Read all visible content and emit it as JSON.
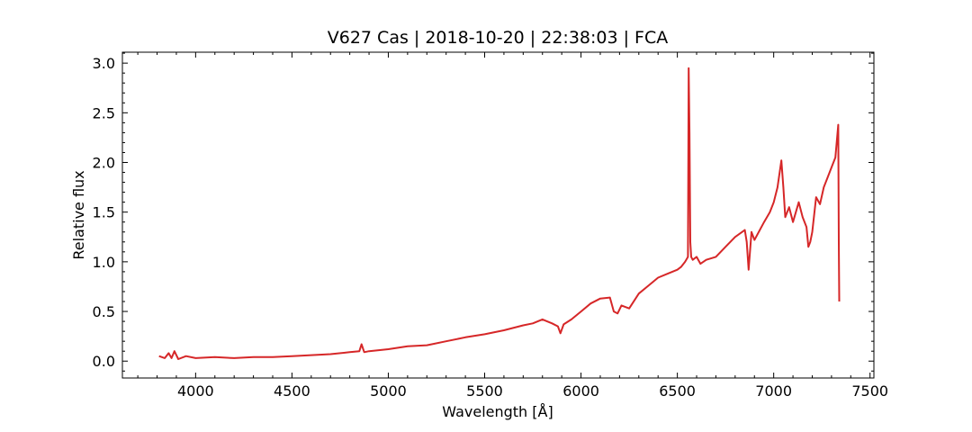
{
  "chart_data": {
    "type": "line",
    "title": "V627 Cas | 2018-10-20 | 22:38:03 | FCA",
    "xlabel": "Wavelength [Å]",
    "ylabel": "Relative flux",
    "xlim": [
      3620,
      7520
    ],
    "ylim": [
      -0.17,
      3.11
    ],
    "xticks": [
      4000,
      4500,
      5000,
      5500,
      6000,
      6500,
      7000,
      7500
    ],
    "yticks": [
      0.0,
      0.5,
      1.0,
      1.5,
      2.0,
      2.5,
      3.0
    ],
    "xtick_labels": [
      "4000",
      "4500",
      "5000",
      "5500",
      "6000",
      "6500",
      "7000",
      "7500"
    ],
    "ytick_labels": [
      "0.0",
      "0.5",
      "1.0",
      "1.5",
      "2.0",
      "2.5",
      "3.0"
    ],
    "grid": false,
    "line_color": "#d62728",
    "series": [
      {
        "x": [
          3810,
          3840,
          3860,
          3875,
          3890,
          3910,
          3950,
          4000,
          4100,
          4200,
          4300,
          4400,
          4500,
          4600,
          4700,
          4800,
          4850,
          4861,
          4875,
          4900,
          5000,
          5100,
          5200,
          5300,
          5400,
          5500,
          5600,
          5700,
          5750,
          5800,
          5850,
          5880,
          5893,
          5910,
          5950,
          6000,
          6050,
          6100,
          6150,
          6170,
          6190,
          6210,
          6250,
          6300,
          6350,
          6400,
          6450,
          6500,
          6520,
          6540,
          6555,
          6559,
          6563,
          6567,
          6572,
          6580,
          6600,
          6620,
          6650,
          6700,
          6750,
          6800,
          6850,
          6860,
          6870,
          6885,
          6900,
          6950,
          6980,
          7000,
          7020,
          7040,
          7050,
          7060,
          7080,
          7100,
          7130,
          7150,
          7170,
          7180,
          7190,
          7200,
          7220,
          7240,
          7260,
          7280,
          7300,
          7320,
          7335,
          7338,
          7340
        ],
        "y": [
          0.05,
          0.03,
          0.08,
          0.03,
          0.1,
          0.02,
          0.05,
          0.03,
          0.04,
          0.03,
          0.04,
          0.04,
          0.05,
          0.06,
          0.07,
          0.09,
          0.1,
          0.17,
          0.09,
          0.1,
          0.12,
          0.15,
          0.16,
          0.2,
          0.24,
          0.27,
          0.31,
          0.36,
          0.38,
          0.42,
          0.38,
          0.35,
          0.28,
          0.37,
          0.42,
          0.5,
          0.58,
          0.63,
          0.64,
          0.5,
          0.48,
          0.56,
          0.53,
          0.68,
          0.76,
          0.84,
          0.88,
          0.92,
          0.95,
          1.0,
          1.05,
          2.95,
          2.3,
          1.2,
          1.05,
          1.02,
          1.05,
          0.98,
          1.02,
          1.05,
          1.15,
          1.25,
          1.32,
          1.2,
          0.92,
          1.3,
          1.22,
          1.4,
          1.5,
          1.6,
          1.75,
          2.02,
          1.75,
          1.45,
          1.55,
          1.4,
          1.6,
          1.45,
          1.35,
          1.15,
          1.2,
          1.3,
          1.65,
          1.58,
          1.75,
          1.85,
          1.95,
          2.05,
          2.38,
          1.2,
          0.6
        ]
      }
    ]
  }
}
